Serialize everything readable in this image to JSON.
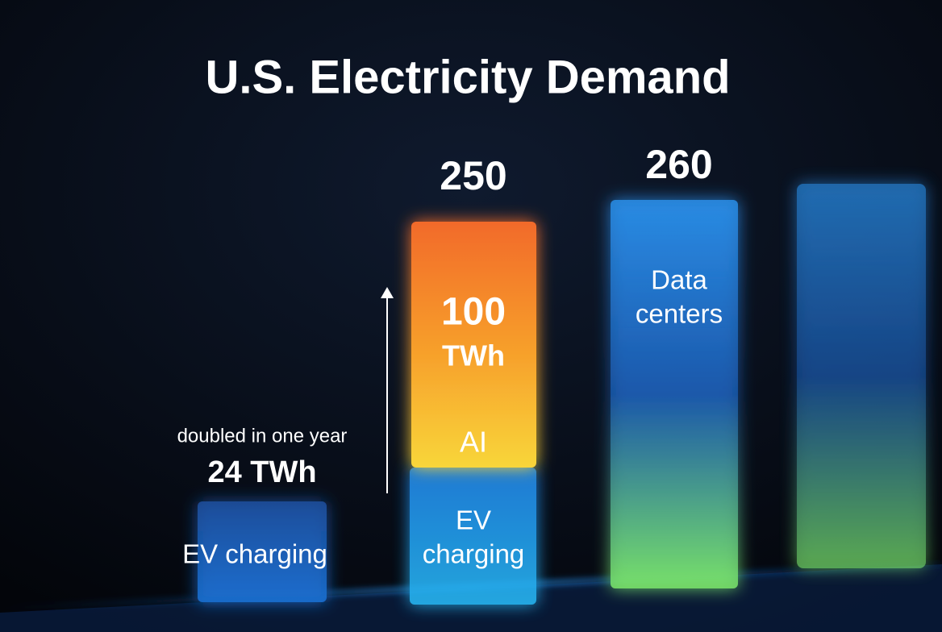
{
  "title": "U.S. Electricity Demand",
  "left": {
    "note": "doubled in one year",
    "amount": "24 TWh",
    "label": "EV charging"
  },
  "middle": {
    "total": "250",
    "ai_value": "100",
    "ai_unit": "TWh",
    "ai_label": "AI",
    "ev_label_lines": [
      "EV",
      "charging"
    ]
  },
  "right": {
    "total": "260",
    "label_lines": [
      "Data",
      "centers"
    ]
  }
}
